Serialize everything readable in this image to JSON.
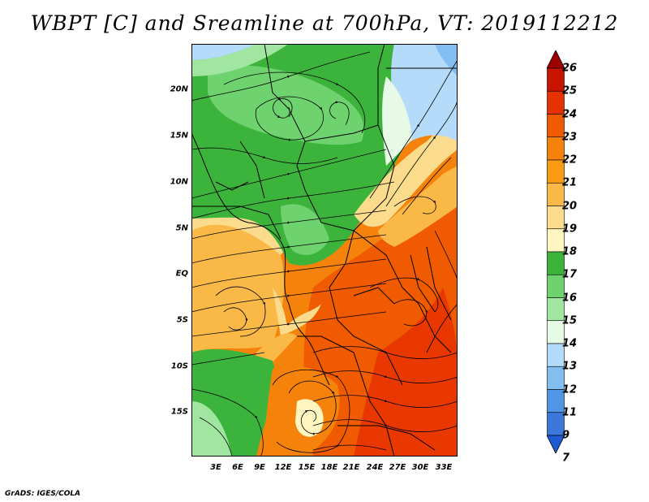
{
  "title": "WBPT [C] and Sreamline at 700hPa, VT: 2019112212",
  "footer": "GrADS: IGES/COLA",
  "lat_labels": [
    "20N",
    "15N",
    "10N",
    "5N",
    "EQ",
    "5S",
    "10S",
    "15S"
  ],
  "lon_labels": [
    "3E",
    "6E",
    "9E",
    "12E",
    "15E",
    "18E",
    "21E",
    "24E",
    "27E",
    "30E",
    "33E"
  ],
  "colorbar": {
    "labels": [
      "26",
      "25",
      "24",
      "23",
      "22",
      "21",
      "20",
      "19",
      "18",
      "17",
      "16",
      "15",
      "14",
      "13",
      "12",
      "11",
      "9",
      "7"
    ],
    "colors": [
      "#9e0000",
      "#c81400",
      "#e63200",
      "#f05a00",
      "#f5820a",
      "#fa9b14",
      "#fab946",
      "#fadc8c",
      "#fff5c0",
      "#3cb43c",
      "#6ed26e",
      "#a0e6a0",
      "#e6fae6",
      "#b4dcfa",
      "#82beef",
      "#5096e6",
      "#3c78dc",
      "#1e5ad2"
    ]
  },
  "map": {
    "fill_colors": {
      "dark_green": "#3cb43c",
      "mid_green": "#6ed26e",
      "light_green": "#a0e6a0",
      "pale_green": "#e6fae6",
      "light_blue": "#b4dcfa",
      "blue": "#82beef",
      "pale_yellow": "#fff5c0",
      "yellow": "#fadc8c",
      "light_orange": "#fab946",
      "orange": "#f5820a",
      "dark_orange": "#f05a00",
      "red_orange": "#e63200"
    }
  }
}
